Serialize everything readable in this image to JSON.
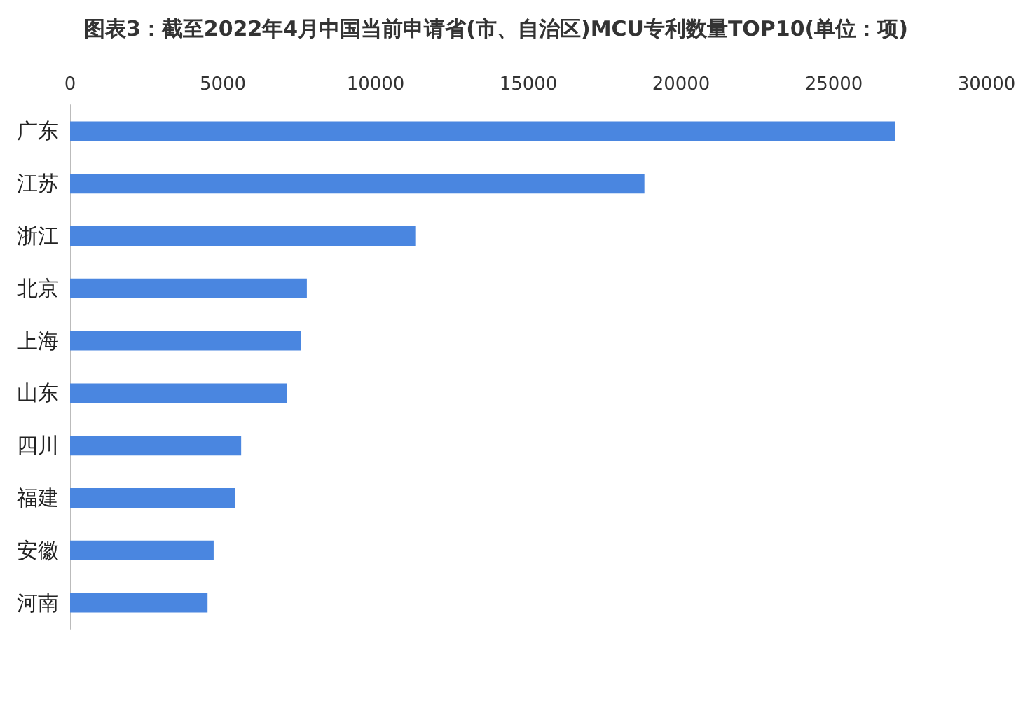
{
  "chart_data": {
    "type": "bar",
    "orientation": "horizontal",
    "title": "图表3：截至2022年4月中国当前申请省(市、自治区)MCU专利数量TOP10(单位：项)",
    "categories": [
      "广东",
      "江苏",
      "浙江",
      "北京",
      "上海",
      "山东",
      "四川",
      "福建",
      "安徽",
      "河南"
    ],
    "values": [
      27000,
      18800,
      11300,
      7750,
      7550,
      7100,
      5600,
      5400,
      4700,
      4500
    ],
    "color": "#4a86e0",
    "xlim": [
      0,
      30000
    ],
    "xticks": [
      0,
      5000,
      10000,
      15000,
      20000,
      25000,
      30000
    ],
    "grid": false
  }
}
